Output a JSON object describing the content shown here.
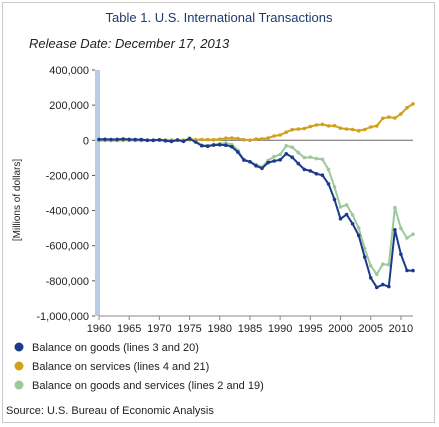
{
  "chart_data": {
    "type": "line",
    "title": "Table 1. U.S. International Transactions",
    "subtitle": "Release Date: December 17, 2013",
    "ylabel": "[Millions of dollars]",
    "xlabel": "",
    "xlim": [
      1960,
      2012
    ],
    "ylim": [
      -1000000,
      400000
    ],
    "y_ticks": [
      400000,
      200000,
      0,
      -200000,
      -400000,
      -600000,
      -800000,
      -1000000
    ],
    "y_tick_labels": [
      "400,000",
      "200,000",
      "0",
      "-200,000",
      "-400,000",
      "-600,000",
      "-800,000",
      "-1,000,000"
    ],
    "x_ticks": [
      1960,
      1965,
      1970,
      1975,
      1980,
      1985,
      1990,
      1995,
      2000,
      2005,
      2010
    ],
    "x_tick_labels": [
      "1960",
      "1965",
      "1970",
      "1975",
      "1980",
      "1985",
      "1990",
      "1995",
      "2000",
      "2005",
      "2010"
    ],
    "grid": false,
    "legend_position": "bottom",
    "x": [
      1960,
      1961,
      1962,
      1963,
      1964,
      1965,
      1966,
      1967,
      1968,
      1969,
      1970,
      1971,
      1972,
      1973,
      1974,
      1975,
      1976,
      1977,
      1978,
      1979,
      1980,
      1981,
      1982,
      1983,
      1984,
      1985,
      1986,
      1987,
      1988,
      1989,
      1990,
      1991,
      1992,
      1993,
      1994,
      1995,
      1996,
      1997,
      1998,
      1999,
      2000,
      2001,
      2002,
      2003,
      2004,
      2005,
      2006,
      2007,
      2008,
      2009,
      2010,
      2011,
      2012
    ],
    "series": [
      {
        "name": "Balance on goods (lines 3 and 20)",
        "color": "#1b3a8c",
        "values": [
          4892,
          5571,
          4521,
          5224,
          6801,
          4951,
          3817,
          3800,
          635,
          607,
          2603,
          -2260,
          -6416,
          911,
          -5505,
          8903,
          -9483,
          -31091,
          -33927,
          -27568,
          -25500,
          -28023,
          -36485,
          -67102,
          -112492,
          -122173,
          -145081,
          -159557,
          -126959,
          -117749,
          -111037,
          -76937,
          -96897,
          -132451,
          -165831,
          -174170,
          -191000,
          -198428,
          -248221,
          -337068,
          -446783,
          -422370,
          -475245,
          -541355,
          -664766,
          -782740,
          -837289,
          -821196,
          -832492,
          -509694,
          -648671,
          -740999,
          -741475
        ]
      },
      {
        "name": "Balance on services (lines 4 and 21)",
        "color": "#d1a11e",
        "values": [
          -1385,
          -1382,
          -948,
          -957,
          -343,
          -287,
          -877,
          -1196,
          -385,
          -516,
          -349,
          957,
          973,
          989,
          1213,
          3501,
          3401,
          3845,
          4164,
          3003,
          6093,
          11852,
          12329,
          9335,
          3412,
          294,
          6543,
          7874,
          12339,
          24562,
          30173,
          45802,
          60396,
          63689,
          67338,
          77782,
          86936,
          90155,
          82081,
          82771,
          69025,
          64393,
          61178,
          54015,
          61561,
          75573,
          82006,
          125114,
          131768,
          126816,
          150398,
          185123,
          206834
        ]
      },
      {
        "name": "Balance on goods and services (lines 2 and 19)",
        "color": "#9dc89a",
        "values": [
          3508,
          4195,
          3370,
          4210,
          6022,
          4664,
          2940,
          2604,
          250,
          91,
          2254,
          -1303,
          -5443,
          1900,
          -4292,
          12404,
          -6082,
          -27246,
          -29763,
          -24565,
          -19407,
          -16172,
          -24156,
          -57767,
          -109072,
          -121880,
          -138538,
          -151684,
          -114566,
          -93141,
          -80864,
          -31135,
          -39212,
          -70311,
          -98493,
          -96384,
          -104065,
          -108273,
          -166140,
          -265090,
          -379835,
          -367658,
          -424371,
          -499379,
          -615374,
          -714371,
          -762716,
          -705375,
          -708726,
          -383657,
          -501421,
          -555876,
          -534656
        ]
      }
    ],
    "source": "Source: U.S. Bureau of Economic Analysis"
  }
}
